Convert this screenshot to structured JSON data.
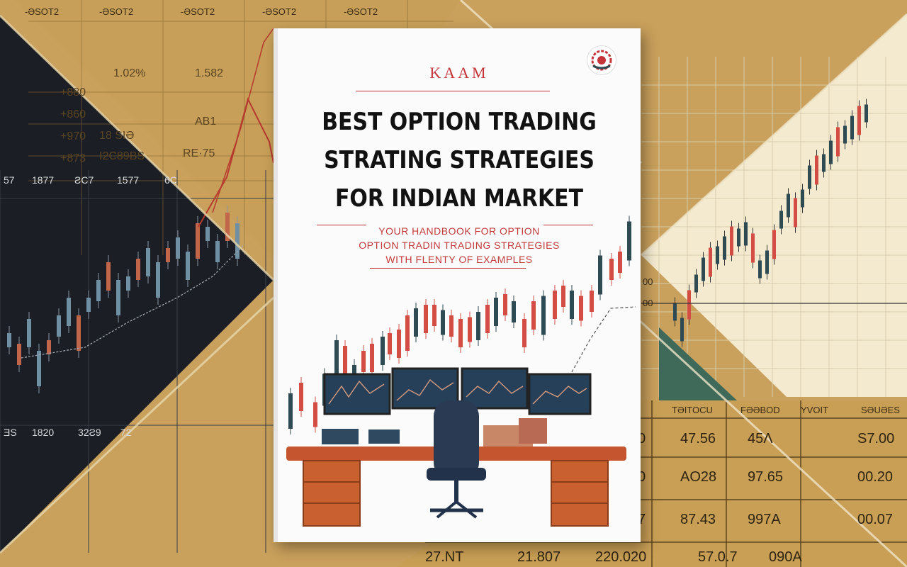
{
  "cover": {
    "publisher": "KAAM",
    "title_lines": [
      "BEST OPTION TRADING",
      "STRATING STRATEGIES",
      "FOR INDIAN MARKET"
    ],
    "subtitle_lines": [
      "YOUR HANDBOOK FOR OPTION",
      "OPTION TRADIN TRADING STRATEGIES",
      "WITH FLENTY OF EXAMPLES"
    ],
    "logo_icon": "mandala-logo-icon"
  },
  "colors": {
    "title": "#121212",
    "accent_red": "#c4353a",
    "candle_up": "#2e4a52",
    "candle_down": "#d34d44",
    "background_gold": "#c9a05c",
    "dark_panel": "#1b1e24",
    "cream_panel": "#f3ead0"
  },
  "gold_panel": {
    "headers": [
      "-ƏSOT2",
      "-ƏSOT2",
      "-ƏSOT2",
      "-ƏSOT2",
      "-ƏSOT2"
    ],
    "rows": [
      [
        "1.02%",
        "1.582"
      ],
      [
        "+860",
        "AB1"
      ],
      [
        "+970",
        "18 SIƏ"
      ],
      [
        "+873",
        "I2C89BS",
        "RE·75"
      ]
    ],
    "left_col": [
      "+880",
      "+860",
      "+970",
      "+873"
    ]
  },
  "dark_panel": {
    "top_labels": [
      "57",
      "1877",
      "ƧC7",
      "1577",
      "6C"
    ],
    "bottom_labels": [
      "ƎS",
      "1820",
      "32Ƨ9",
      "72"
    ]
  },
  "cream_panel": {
    "axis_labels": [
      "00",
      "00"
    ]
  },
  "table": {
    "headers": [
      "TƏITOCU",
      "FƏƏBOD",
      "YVOIT",
      "SƏUƏES"
    ],
    "rows": [
      [
        "47.56",
        "45Ʌ",
        "S7.00"
      ],
      [
        "AO28",
        "97.65",
        "00.20"
      ],
      [
        "87.43",
        "997A",
        "00.07"
      ],
      [
        "27.NT",
        "21.807",
        "220.020",
        "57.0.7",
        "090A"
      ]
    ],
    "left_col": [
      "0",
      "0",
      "7"
    ]
  }
}
